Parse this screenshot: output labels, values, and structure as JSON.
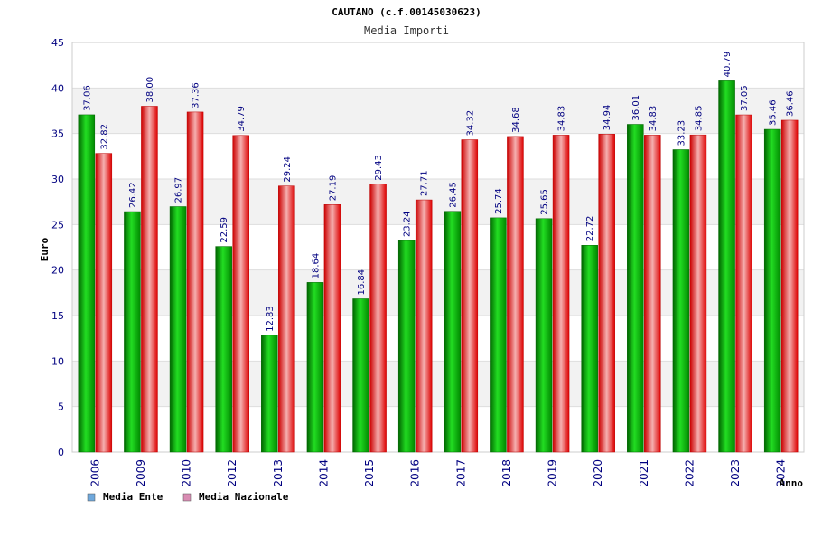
{
  "chart_data": {
    "type": "bar",
    "title": "CAUTANO (c.f.00145030623)",
    "subtitle": "Media Importi",
    "xlabel": "Anno",
    "ylabel": "Euro",
    "ylim": [
      0,
      45
    ],
    "yticks": [
      "0",
      "5",
      "10",
      "15",
      "20",
      "25",
      "30",
      "35",
      "40",
      "45"
    ],
    "categories": [
      "2006",
      "2009",
      "2010",
      "2012",
      "2013",
      "2014",
      "2015",
      "2016",
      "2017",
      "2018",
      "2019",
      "2020",
      "2021",
      "2022",
      "2023",
      "2024"
    ],
    "series": [
      {
        "name": "Media Ente",
        "color": "#00aa00",
        "legend_color": "#6fa8dc",
        "values": [
          37.06,
          26.42,
          26.97,
          22.59,
          12.83,
          18.64,
          16.84,
          23.24,
          26.45,
          25.74,
          25.65,
          22.72,
          36.01,
          33.23,
          40.79,
          35.46
        ],
        "labels": [
          "37.06",
          "26.42",
          "26.97",
          "22.59",
          "12.83",
          "18.64",
          "16.84",
          "23.24",
          "26.45",
          "25.74",
          "25.65",
          "22.72",
          "36.01",
          "33.23",
          "40.79",
          "35.46"
        ]
      },
      {
        "name": "Media Nazionale",
        "color": "#ee2222",
        "legend_color": "#d98cb3",
        "values": [
          32.82,
          38.0,
          37.36,
          34.79,
          29.24,
          27.19,
          29.43,
          27.71,
          34.32,
          34.68,
          34.83,
          34.94,
          34.83,
          34.85,
          37.05,
          36.46
        ],
        "labels": [
          "32.82",
          "38.00",
          "37.36",
          "34.79",
          "29.24",
          "27.19",
          "29.43",
          "27.71",
          "34.32",
          "34.68",
          "34.83",
          "34.94",
          "34.83",
          "34.85",
          "37.05",
          "36.46"
        ]
      }
    ],
    "grid": true,
    "legend": "bottom-left"
  }
}
